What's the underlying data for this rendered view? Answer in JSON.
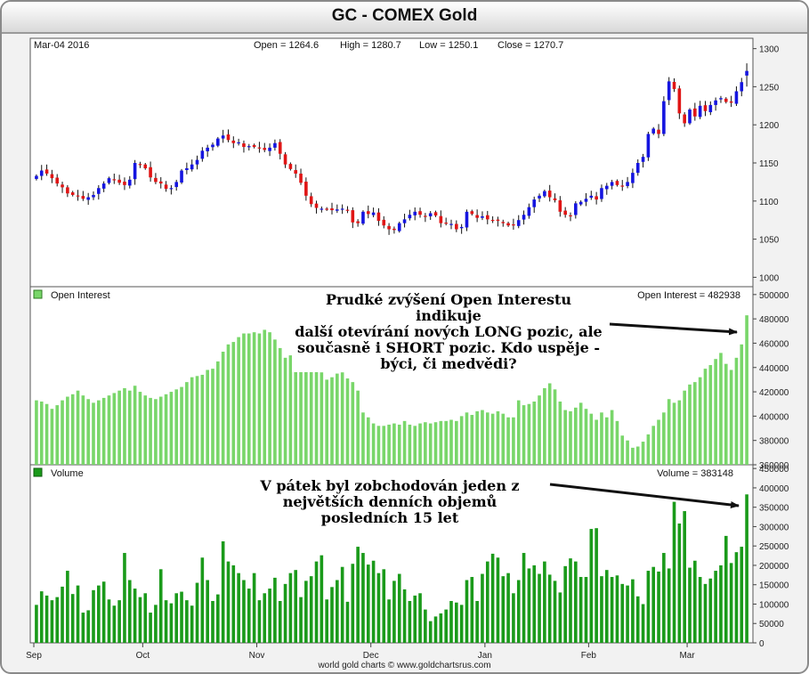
{
  "title": "GC - COMEX Gold",
  "footer": "world gold charts © www.goldchartsrus.com",
  "colors": {
    "up": "#1515e0",
    "down": "#e01515",
    "open_interest": "#79d66a",
    "volume": "#1a9a1a",
    "arrow": "#111111"
  },
  "panels": {
    "price": {
      "date": "Mar-04  2016",
      "open": "Open = 1264.6",
      "high": "High = 1280.7",
      "low": "Low = 1250.1",
      "close": "Close = 1270.7"
    },
    "open_interest": {
      "label": "Open Interest",
      "value_label": "Open Interest = 482938"
    },
    "volume": {
      "label": "Volume",
      "value_label": "Volume = 383148"
    }
  },
  "annotations": [
    {
      "lines": [
        "Prudké zvýšení Open Interestu indikuje",
        "další otevírání nových LONG pozic, ale",
        "současně i SHORT pozic. Kdo uspěje -",
        "býci, či medvědi?"
      ]
    },
    {
      "lines": [
        "V pátek byl zobchodován jeden z",
        "největších denních objemů",
        "posledních 15 let"
      ]
    }
  ],
  "chart_data": [
    {
      "type": "candlestick",
      "title": "GC - COMEX Gold",
      "x_ticks": [
        "Sep",
        "Oct",
        "Nov",
        "Dec",
        "Jan",
        "Feb",
        "Mar"
      ],
      "y_ticks": [
        1000,
        1050,
        1100,
        1150,
        1200,
        1250,
        1300
      ],
      "ylim": [
        990,
        1310
      ],
      "last_bar": {
        "date": "Mar-04 2016",
        "open": 1264.6,
        "high": 1280.7,
        "low": 1250.1,
        "close": 1270.7
      },
      "closes": [
        1133,
        1140,
        1136,
        1130,
        1123,
        1118,
        1110,
        1108,
        1106,
        1103,
        1105,
        1108,
        1117,
        1123,
        1130,
        1128,
        1124,
        1121,
        1128,
        1150,
        1148,
        1143,
        1131,
        1125,
        1123,
        1116,
        1117,
        1125,
        1140,
        1143,
        1148,
        1154,
        1166,
        1170,
        1174,
        1182,
        1186,
        1180,
        1176,
        1177,
        1171,
        1172,
        1171,
        1169,
        1167,
        1170,
        1176,
        1162,
        1148,
        1142,
        1136,
        1124,
        1107,
        1096,
        1091,
        1090,
        1089,
        1088,
        1089,
        1090,
        1088,
        1072,
        1071,
        1086,
        1083,
        1085,
        1074,
        1068,
        1063,
        1062,
        1071,
        1076,
        1082,
        1086,
        1082,
        1080,
        1084,
        1081,
        1071,
        1071,
        1070,
        1063,
        1066,
        1086,
        1083,
        1078,
        1080,
        1076,
        1075,
        1074,
        1071,
        1068,
        1068,
        1075,
        1082,
        1092,
        1102,
        1107,
        1113,
        1105,
        1101,
        1086,
        1082,
        1081,
        1097,
        1099,
        1103,
        1107,
        1102,
        1117,
        1120,
        1125,
        1121,
        1119,
        1125,
        1137,
        1150,
        1158,
        1188,
        1195,
        1188,
        1231,
        1257,
        1247,
        1215,
        1202,
        1220,
        1211,
        1225,
        1218,
        1226,
        1232,
        1235,
        1230,
        1229,
        1244,
        1256,
        1271
      ]
    },
    {
      "type": "bar",
      "title": "Open Interest",
      "x_ticks": [
        "Sep",
        "Oct",
        "Nov",
        "Dec",
        "Jan",
        "Feb",
        "Mar"
      ],
      "y_ticks": [
        360000,
        380000,
        400000,
        420000,
        440000,
        460000,
        480000,
        500000
      ],
      "ylim": [
        360000,
        505000
      ],
      "last_value": 482938,
      "values": [
        413000,
        412000,
        410000,
        406000,
        409000,
        413000,
        416000,
        418000,
        421000,
        417000,
        414000,
        411000,
        413000,
        415000,
        417000,
        419000,
        421000,
        423000,
        421000,
        425000,
        420000,
        417000,
        415000,
        414000,
        416000,
        418000,
        420000,
        422000,
        424000,
        428000,
        432000,
        433000,
        434000,
        438000,
        439000,
        445000,
        453000,
        459000,
        461000,
        465000,
        468000,
        468000,
        469000,
        468000,
        471000,
        469000,
        463000,
        456000,
        448000,
        450000,
        447000,
        440000,
        445000,
        441000,
        439000,
        436000,
        430000,
        432000,
        435000,
        436000,
        431000,
        428000,
        421000,
        403000,
        399000,
        394000,
        392000,
        392000,
        393000,
        394000,
        393000,
        396000,
        393000,
        392000,
        394000,
        395000,
        394000,
        395000,
        396000,
        396000,
        397000,
        396000,
        400000,
        403000,
        401000,
        404000,
        405000,
        403000,
        402000,
        404000,
        402000,
        399000,
        399000,
        413000,
        409000,
        410000,
        412000,
        417000,
        423000,
        427000,
        422000,
        412000,
        405000,
        404000,
        407000,
        411000,
        406000,
        402000,
        397000,
        403000,
        399000,
        405000,
        396000,
        384000,
        380000,
        374000,
        375000,
        379000,
        385000,
        392000,
        397000,
        403000,
        414000,
        411000,
        413000,
        421000,
        426000,
        428000,
        432000,
        439000,
        442000,
        447000,
        452000,
        443000,
        438000,
        448000,
        459000,
        482938
      ]
    },
    {
      "type": "bar",
      "title": "Volume",
      "x_ticks": [
        "Sep",
        "Oct",
        "Nov",
        "Dec",
        "Jan",
        "Feb",
        "Mar"
      ],
      "y_ticks": [
        0,
        50000,
        100000,
        150000,
        200000,
        250000,
        300000,
        350000,
        400000,
        450000
      ],
      "ylim": [
        0,
        455000
      ],
      "last_value": 383148,
      "values": [
        98000,
        133000,
        122000,
        110000,
        118000,
        145000,
        186000,
        126000,
        148000,
        78000,
        84000,
        136000,
        148000,
        158000,
        112000,
        96000,
        110000,
        232000,
        162000,
        140000,
        118000,
        128000,
        78000,
        98000,
        190000,
        110000,
        102000,
        128000,
        132000,
        110000,
        96000,
        155000,
        220000,
        162000,
        108000,
        125000,
        262000,
        210000,
        200000,
        180000,
        162000,
        140000,
        180000,
        110000,
        128000,
        140000,
        168000,
        108000,
        152000,
        180000,
        188000,
        118000,
        160000,
        172000,
        210000,
        226000,
        112000,
        144000,
        162000,
        196000,
        106000,
        204000,
        248000,
        232000,
        202000,
        212000,
        180000,
        190000,
        112000,
        160000,
        178000,
        138000,
        108000,
        122000,
        128000,
        86000,
        56000,
        68000,
        76000,
        86000,
        108000,
        104000,
        98000,
        162000,
        170000,
        108000,
        178000,
        210000,
        230000,
        220000,
        172000,
        180000,
        128000,
        162000,
        232000,
        192000,
        200000,
        178000,
        210000,
        176000,
        160000,
        130000,
        198000,
        218000,
        210000,
        170000,
        170000,
        294000,
        296000,
        172000,
        188000,
        170000,
        174000,
        152000,
        148000,
        164000,
        120000,
        100000,
        186000,
        196000,
        184000,
        232000,
        192000,
        364000,
        308000,
        340000,
        194000,
        212000,
        170000,
        152000,
        166000,
        186000,
        200000,
        276000,
        206000,
        234000,
        248000,
        383148
      ]
    }
  ]
}
